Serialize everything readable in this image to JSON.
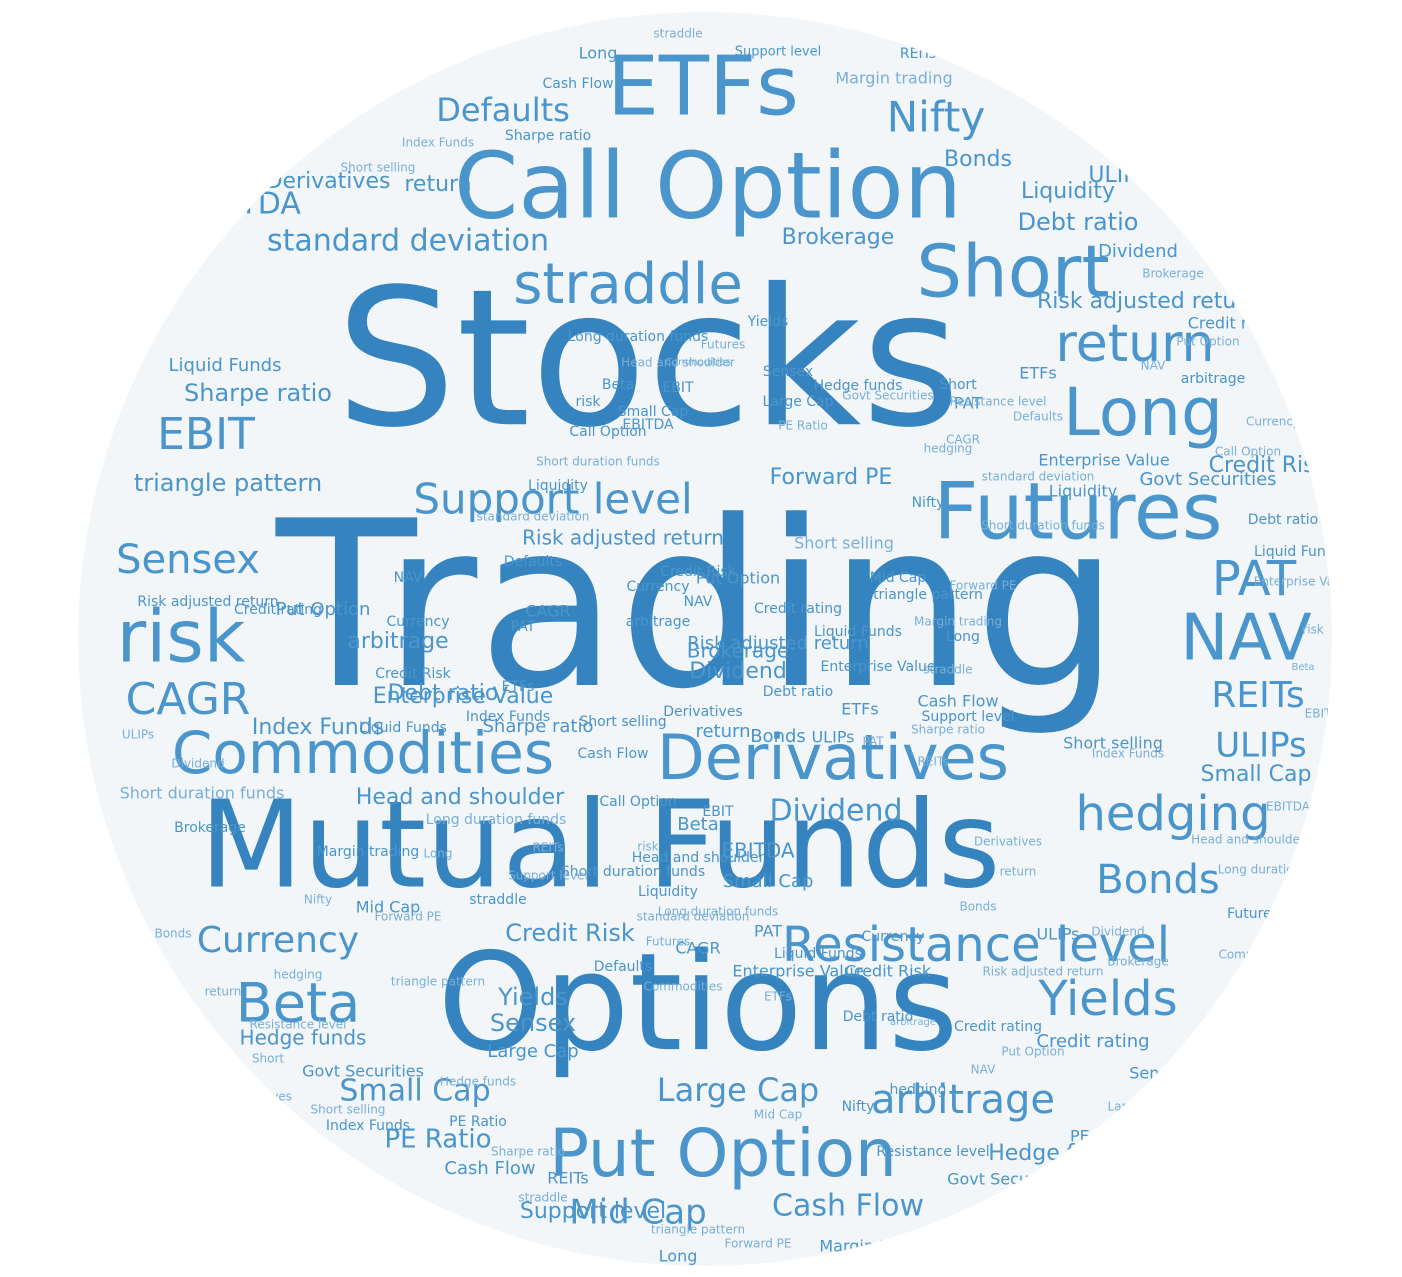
{
  "colors": {
    "circle_background": "#f3f6f9",
    "word_primary": "#3584c0",
    "word_secondary": "#4a95cb",
    "word_light": "#78afd8"
  },
  "words": [
    {
      "text": "Trading",
      "weight": 100,
      "color": "#3584c0"
    },
    {
      "text": "Stocks",
      "weight": 88,
      "color": "#3584c0"
    },
    {
      "text": "Options",
      "weight": 62,
      "color": "#3584c0"
    },
    {
      "text": "Mutual Funds",
      "weight": 60,
      "color": "#3584c0"
    },
    {
      "text": "Call Option",
      "weight": 45,
      "color": "#4a95cb"
    },
    {
      "text": "Futures",
      "weight": 38,
      "color": "#4a95cb"
    },
    {
      "text": "Short",
      "weight": 38,
      "color": "#4a95cb"
    },
    {
      "text": "Long",
      "weight": 34,
      "color": "#4a95cb"
    },
    {
      "text": "Derivatives",
      "weight": 34,
      "color": "#4a95cb"
    },
    {
      "text": "Put Option",
      "weight": 34,
      "color": "#4a95cb"
    },
    {
      "text": "ETFs",
      "weight": 32,
      "color": "#4a95cb"
    },
    {
      "text": "risk",
      "weight": 32,
      "color": "#4a95cb"
    },
    {
      "text": "Commodities",
      "weight": 30,
      "color": "#4a95cb"
    },
    {
      "text": "Resistance level",
      "weight": 26,
      "color": "#4a95cb"
    },
    {
      "text": "straddle",
      "weight": 28,
      "color": "#4a95cb"
    },
    {
      "text": "return",
      "weight": 26,
      "color": "#4a95cb"
    },
    {
      "text": "NAV",
      "weight": 28,
      "color": "#4a95cb"
    },
    {
      "text": "PAT",
      "weight": 24,
      "color": "#4a95cb"
    },
    {
      "text": "Beta",
      "weight": 24,
      "color": "#4a95cb"
    },
    {
      "text": "Yields",
      "weight": 22,
      "color": "#4a95cb"
    },
    {
      "text": "hedging",
      "weight": 22,
      "color": "#4a95cb"
    },
    {
      "text": "Support level",
      "weight": 22,
      "color": "#4a95cb"
    },
    {
      "text": "Bonds",
      "weight": 22,
      "color": "#4a95cb"
    },
    {
      "text": "arbitrage",
      "weight": 20,
      "color": "#4a95cb"
    },
    {
      "text": "CAGR",
      "weight": 22,
      "color": "#4a95cb"
    },
    {
      "text": "EBIT",
      "weight": 22,
      "color": "#4a95cb"
    },
    {
      "text": "Sensex",
      "weight": 20,
      "color": "#4a95cb"
    },
    {
      "text": "Nifty",
      "weight": 20,
      "color": "#4a95cb"
    },
    {
      "text": "REITs",
      "weight": 20,
      "color": "#4a95cb"
    },
    {
      "text": "ULIPs",
      "weight": 20,
      "color": "#4a95cb"
    },
    {
      "text": "Currency",
      "weight": 18,
      "color": "#4a95cb"
    },
    {
      "text": "Defaults",
      "weight": 18,
      "color": "#4a95cb"
    },
    {
      "text": "Small Cap",
      "weight": 16,
      "color": "#4a95cb"
    },
    {
      "text": "Large Cap",
      "weight": 16,
      "color": "#4a95cb"
    },
    {
      "text": "Mid Cap",
      "weight": 16,
      "color": "#4a95cb"
    },
    {
      "text": "Cash Flow",
      "weight": 16,
      "color": "#4a95cb"
    },
    {
      "text": "Dividend",
      "weight": 16,
      "color": "#4a95cb"
    },
    {
      "text": "Credit Risk",
      "weight": 14,
      "color": "#4a95cb"
    },
    {
      "text": "standard deviation",
      "weight": 15,
      "color": "#4a95cb"
    },
    {
      "text": "EBITDA",
      "weight": 15,
      "color": "#4a95cb"
    },
    {
      "text": "PE Ratio",
      "weight": 14,
      "color": "#4a95cb"
    },
    {
      "text": "triangle pattern",
      "weight": 13,
      "color": "#4a95cb"
    },
    {
      "text": "Sharpe ratio",
      "weight": 13,
      "color": "#4a95cb"
    },
    {
      "text": "Brokerage",
      "weight": 12,
      "color": "#4a95cb"
    },
    {
      "text": "Debt ratio",
      "weight": 13,
      "color": "#4a95cb"
    },
    {
      "text": "Liquidity",
      "weight": 12,
      "color": "#4a95cb"
    },
    {
      "text": "Head and shoulder",
      "weight": 12,
      "color": "#4a95cb"
    },
    {
      "text": "Hedge funds",
      "weight": 11,
      "color": "#4a95cb"
    },
    {
      "text": "Forward PE",
      "weight": 12,
      "color": "#4a95cb"
    },
    {
      "text": "Index Funds",
      "weight": 12,
      "color": "#4a95cb"
    },
    {
      "text": "Risk adjusted return",
      "weight": 11,
      "color": "#4a95cb"
    },
    {
      "text": "Liquid Funds",
      "weight": 11,
      "color": "#4a95cb"
    },
    {
      "text": "Short duration funds",
      "weight": 10,
      "color": "#78afd8"
    },
    {
      "text": "Long duration funds",
      "weight": 10,
      "color": "#78afd8"
    },
    {
      "text": "Govt Securities",
      "weight": 11,
      "color": "#4a95cb"
    },
    {
      "text": "Margin trading",
      "weight": 11,
      "color": "#78afd8"
    },
    {
      "text": "Short selling",
      "weight": 10,
      "color": "#78afd8"
    },
    {
      "text": "Credit rating",
      "weight": 11,
      "color": "#4a95cb"
    },
    {
      "text": "Enterprise Value",
      "weight": 11,
      "color": "#4a95cb"
    }
  ]
}
